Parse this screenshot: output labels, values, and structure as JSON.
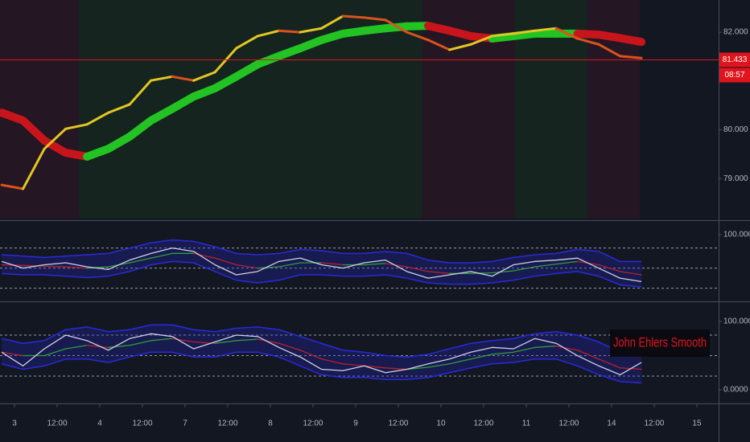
{
  "chart_data": [
    {
      "type": "line",
      "xlim": [
        -0.34,
        16.51
      ],
      "x": [
        -0.3,
        0.2,
        0.7,
        1.2,
        1.7,
        2.2,
        2.7,
        3.2,
        3.7,
        4.2,
        4.7,
        5.2,
        5.7,
        6.2,
        6.7,
        7.2,
        7.7,
        8.2,
        8.7,
        9.2,
        9.7,
        10.2,
        10.7,
        11.2,
        11.7,
        12.2,
        12.7,
        13.2,
        13.7,
        14.2,
        14.7
      ],
      "ylim": [
        78.18,
        82.66
      ],
      "yticks": [
        {
          "value": 82,
          "label": "82.000"
        },
        {
          "value": 80,
          "label": "80.000"
        },
        {
          "value": 79,
          "label": "79.000"
        }
      ],
      "series": [
        {
          "color": "#e2c624",
          "down_color": "#d9531e",
          "values": [
            78.87,
            78.79,
            79.61,
            80.02,
            80.11,
            80.35,
            80.52,
            81.01,
            81.09,
            81.01,
            81.18,
            81.67,
            81.92,
            82.03,
            82.0,
            82.08,
            82.33,
            82.3,
            82.25,
            82.0,
            81.84,
            81.64,
            81.75,
            81.92,
            81.97,
            82.03,
            82.08,
            81.87,
            81.75,
            81.51,
            81.47
          ]
        },
        {
          "color": "#22c322",
          "down_color": "#c8151b",
          "values": [
            80.35,
            80.19,
            79.78,
            79.53,
            79.45,
            79.61,
            79.86,
            80.19,
            80.43,
            80.68,
            80.85,
            81.09,
            81.34,
            81.51,
            81.67,
            81.84,
            81.97,
            82.03,
            82.08,
            82.12,
            82.13,
            82.03,
            81.92,
            81.87,
            81.92,
            81.97,
            81.97,
            81.97,
            81.95,
            81.88,
            81.8
          ]
        }
      ],
      "last_price": 81.433,
      "last_price_color": "#e0141c",
      "countdown": "08:57"
    },
    {
      "type": "oscillator",
      "xlim": [
        -0.34,
        16.51
      ],
      "x": [
        -0.3,
        0.2,
        0.7,
        1.2,
        1.7,
        2.2,
        2.7,
        3.2,
        3.7,
        4.2,
        4.7,
        5.2,
        5.7,
        6.2,
        6.7,
        7.2,
        7.7,
        8.2,
        8.7,
        9.2,
        9.7,
        10.2,
        10.7,
        11.2,
        11.7,
        12.2,
        12.7,
        13.2,
        13.7,
        14.2,
        14.7
      ],
      "ylim": [
        4,
        116.8
      ],
      "yticks": [
        {
          "value": 100,
          "label": "100.0000"
        }
      ],
      "levels": [
        20,
        50,
        80
      ],
      "band": {
        "color": "#2a2ad8",
        "fill": "rgba(40,40,200,0.28)",
        "upper": [
          70,
          68,
          66,
          68,
          70,
          72,
          80,
          88,
          92,
          90,
          82,
          72,
          70,
          72,
          78,
          76,
          72,
          72,
          75,
          72,
          62,
          58,
          58,
          60,
          66,
          70,
          72,
          78,
          75,
          60,
          60
        ],
        "lower": [
          42,
          40,
          40,
          38,
          36,
          38,
          45,
          55,
          60,
          58,
          45,
          32,
          28,
          32,
          40,
          40,
          38,
          38,
          40,
          35,
          28,
          26,
          26,
          28,
          32,
          38,
          42,
          45,
          38,
          25,
          22
        ]
      },
      "series": [
        {
          "color": "#2e9e3a",
          "down_color": "#b8202a",
          "values": [
            55,
            54,
            53,
            52,
            50,
            52,
            58,
            65,
            72,
            72,
            65,
            55,
            50,
            52,
            58,
            58,
            55,
            55,
            57,
            52,
            45,
            42,
            42,
            43,
            46,
            52,
            56,
            60,
            55,
            45,
            40
          ]
        },
        {
          "color": "#d0d0e4",
          "values": [
            60,
            50,
            55,
            58,
            52,
            48,
            62,
            72,
            80,
            75,
            55,
            40,
            45,
            60,
            65,
            55,
            50,
            58,
            62,
            45,
            35,
            40,
            45,
            38,
            55,
            60,
            62,
            65,
            50,
            35,
            30
          ]
        }
      ]
    },
    {
      "type": "oscillator",
      "xlim": [
        -0.34,
        16.51
      ],
      "x": [
        -0.3,
        0.2,
        0.7,
        1.2,
        1.7,
        2.2,
        2.7,
        3.2,
        3.7,
        4.2,
        4.7,
        5.2,
        5.7,
        6.2,
        6.7,
        7.2,
        7.7,
        8.2,
        8.7,
        9.2,
        9.7,
        10.2,
        10.7,
        11.2,
        11.7,
        12.2,
        12.7,
        13.2,
        13.7,
        14.2,
        14.7
      ],
      "ylim": [
        -17.6,
        125.9
      ],
      "yticks": [
        {
          "value": 100,
          "label": "100.0000"
        },
        {
          "value": 0,
          "label": "0.0000"
        }
      ],
      "levels": [
        20,
        50,
        80
      ],
      "band": {
        "color": "#2a2ad8",
        "fill": "rgba(40,40,200,0.28)",
        "upper": [
          75,
          68,
          72,
          88,
          92,
          85,
          88,
          95,
          95,
          88,
          85,
          90,
          92,
          88,
          78,
          68,
          58,
          55,
          50,
          48,
          52,
          60,
          68,
          72,
          75,
          82,
          85,
          80,
          70,
          55,
          50
        ],
        "lower": [
          38,
          30,
          35,
          45,
          45,
          40,
          48,
          55,
          55,
          48,
          48,
          55,
          55,
          48,
          35,
          22,
          18,
          18,
          15,
          15,
          18,
          25,
          32,
          38,
          40,
          45,
          45,
          35,
          22,
          12,
          10
        ]
      },
      "series": [
        {
          "color": "#2e9e3a",
          "down_color": "#b8202a",
          "values": [
            55,
            50,
            50,
            60,
            65,
            62,
            65,
            72,
            75,
            70,
            68,
            72,
            74,
            68,
            58,
            45,
            38,
            35,
            32,
            30,
            33,
            38,
            45,
            52,
            55,
            62,
            64,
            58,
            45,
            32,
            30
          ]
        },
        {
          "color": "#d0d0e4",
          "values": [
            55,
            35,
            60,
            80,
            72,
            58,
            75,
            82,
            78,
            60,
            70,
            80,
            78,
            62,
            48,
            30,
            28,
            35,
            25,
            30,
            38,
            45,
            55,
            62,
            60,
            75,
            68,
            50,
            35,
            22,
            40
          ]
        }
      ],
      "annotation": "John Ehlers Smooth",
      "annotation_color": "#e0141c",
      "xticks": [
        {
          "value": 0,
          "label": "3"
        },
        {
          "value": 1,
          "label": "12:00"
        },
        {
          "value": 2,
          "label": "4"
        },
        {
          "value": 3,
          "label": "12:00"
        },
        {
          "value": 4,
          "label": "7"
        },
        {
          "value": 5,
          "label": "12:00"
        },
        {
          "value": 6,
          "label": "8"
        },
        {
          "value": 7,
          "label": "12:00"
        },
        {
          "value": 8,
          "label": "9"
        },
        {
          "value": 9,
          "label": "12:00"
        },
        {
          "value": 10,
          "label": "10"
        },
        {
          "value": 11,
          "label": "12:00"
        },
        {
          "value": 12,
          "label": "11"
        },
        {
          "value": 13,
          "label": "12:00"
        },
        {
          "value": 14,
          "label": "14"
        },
        {
          "value": 15,
          "label": "12:00"
        },
        {
          "value": 16,
          "label": "15"
        }
      ]
    }
  ]
}
